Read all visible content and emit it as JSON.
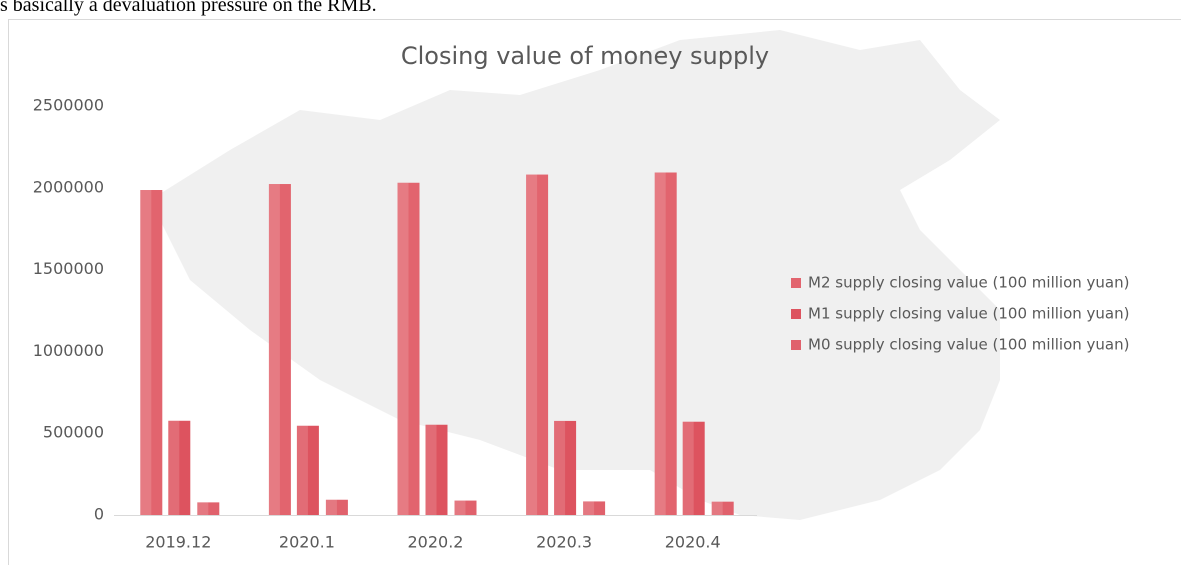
{
  "document_text": "s basically a devaluation pressure on the RMB.",
  "chart_data": {
    "type": "bar",
    "title": "Closing value of money supply",
    "categories": [
      "2019.12",
      "2020.1",
      "2020.2",
      "2020.3",
      "2020.4"
    ],
    "series": [
      {
        "name": "M2 supply closing value (100 million yuan)",
        "color": "#e2646e",
        "values": [
          1986488.8,
          2023066.5,
          2030830.4,
          2080923.4,
          2093533.8
        ]
      },
      {
        "name": "M1 supply closing value (100 million yuan)",
        "color": "#dd535f",
        "values": [
          576009.2,
          545523.9,
          551685.9,
          575050.3,
          570150.5
        ]
      },
      {
        "name": "M0 supply closing value (100 million yuan)",
        "color": "#e0616c",
        "values": [
          77189.5,
          93249.0,
          88187.2,
          83022.2,
          81470.7
        ]
      }
    ],
    "ylim": [
      0,
      2500000
    ],
    "yticks": [
      0,
      500000,
      1000000,
      1500000,
      2000000,
      2500000
    ],
    "legend": "right"
  }
}
